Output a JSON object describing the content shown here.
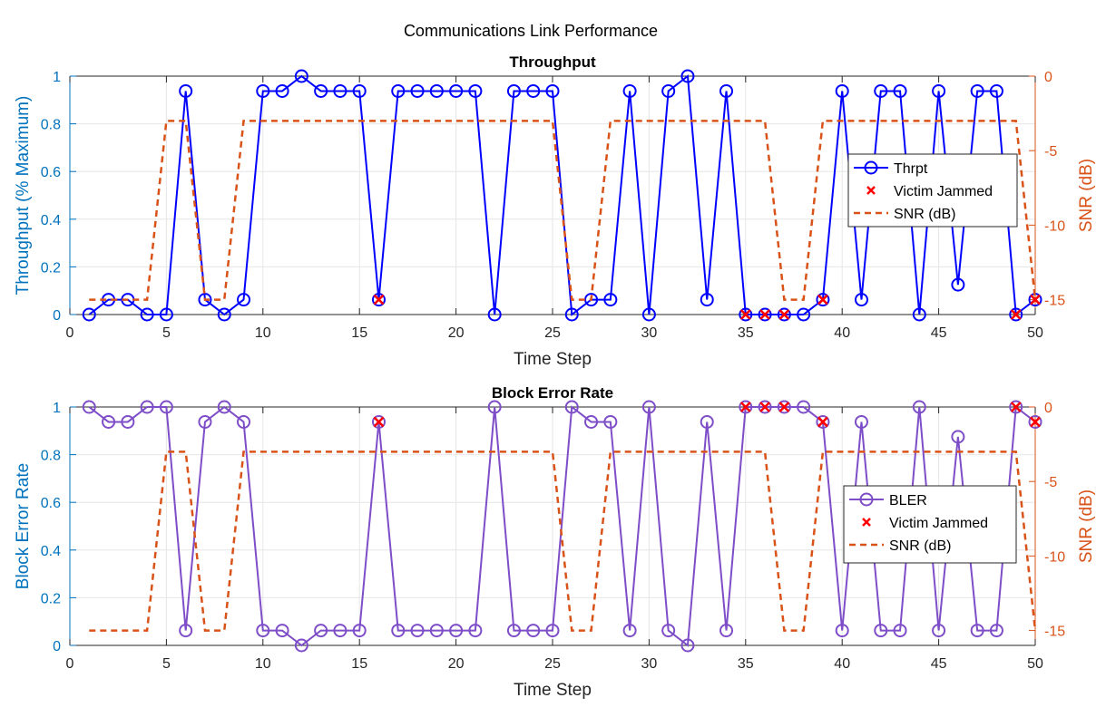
{
  "figure": {
    "title": "Communications Link Performance"
  },
  "colors": {
    "throughput": "#0000FF",
    "bler": "#7E4DC8",
    "jammed": "#FF0000",
    "snr": "#D95319",
    "left_axis": "#0072BD",
    "right_axis": "#D95319",
    "grid": "#E6E6E6"
  },
  "chart_data": [
    {
      "type": "line",
      "title": "Throughput",
      "xlabel": "Time Step",
      "ylabel": "Throughput (% Maximum)",
      "y2label": "SNR (dB)",
      "xlim": [
        0,
        50
      ],
      "ylim": [
        0,
        1
      ],
      "y2lim": [
        -16,
        0
      ],
      "xticks": [
        0,
        5,
        10,
        15,
        20,
        25,
        30,
        35,
        40,
        45,
        50
      ],
      "yticks": [
        0,
        0.2,
        0.4,
        0.6,
        0.8,
        1
      ],
      "y2ticks": [
        -15,
        -10,
        -5,
        0
      ],
      "grid": true,
      "legend_position": "right",
      "x": [
        1,
        2,
        3,
        4,
        5,
        6,
        7,
        8,
        9,
        10,
        11,
        12,
        13,
        14,
        15,
        16,
        17,
        18,
        19,
        20,
        21,
        22,
        23,
        24,
        25,
        26,
        27,
        28,
        29,
        30,
        31,
        32,
        33,
        34,
        35,
        36,
        37,
        38,
        39,
        40,
        41,
        42,
        43,
        44,
        45,
        46,
        47,
        48,
        49,
        50
      ],
      "series": [
        {
          "name": "Thrpt",
          "axis": "left",
          "style": "line-circle",
          "values": [
            0,
            0.0625,
            0.0625,
            0,
            0,
            0.9375,
            0.0625,
            0,
            0.0625,
            0.9375,
            0.9375,
            1,
            0.9375,
            0.9375,
            0.9375,
            0.0625,
            0.9375,
            0.9375,
            0.9375,
            0.9375,
            0.9375,
            0,
            0.9375,
            0.9375,
            0.9375,
            0,
            0.0625,
            0.0625,
            0.9375,
            0,
            0.9375,
            1,
            0.0625,
            0.9375,
            0,
            0,
            0,
            0,
            0.0625,
            0.9375,
            0.0625,
            0.9375,
            0.9375,
            0,
            0.9375,
            0.125,
            0.9375,
            0.9375,
            0,
            0.0625
          ]
        },
        {
          "name": "Victim Jammed",
          "axis": "left",
          "style": "x-marker",
          "points": [
            [
              16,
              0.0625
            ],
            [
              35,
              0
            ],
            [
              36,
              0
            ],
            [
              37,
              0
            ],
            [
              39,
              0.0625
            ],
            [
              49,
              0
            ],
            [
              50,
              0.0625
            ]
          ]
        },
        {
          "name": "SNR (dB)",
          "axis": "right",
          "style": "dashed",
          "values": [
            -15,
            -15,
            -15,
            -15,
            -3,
            -3,
            -15,
            -15,
            -3,
            -3,
            -3,
            -3,
            -3,
            -3,
            -3,
            -3,
            -3,
            -3,
            -3,
            -3,
            -3,
            -3,
            -3,
            -3,
            -3,
            -15,
            -15,
            -3,
            -3,
            -3,
            -3,
            -3,
            -3,
            -3,
            -3,
            -3,
            -15,
            -15,
            -3,
            -3,
            -3,
            -3,
            -3,
            -3,
            -3,
            -3,
            -3,
            -3,
            -3,
            -15
          ]
        }
      ]
    },
    {
      "type": "line",
      "title": "Block Error Rate",
      "xlabel": "Time Step",
      "ylabel": "Block Error Rate",
      "y2label": "SNR (dB)",
      "xlim": [
        0,
        50
      ],
      "ylim": [
        0,
        1
      ],
      "y2lim": [
        -16,
        0
      ],
      "xticks": [
        0,
        5,
        10,
        15,
        20,
        25,
        30,
        35,
        40,
        45,
        50
      ],
      "yticks": [
        0,
        0.2,
        0.4,
        0.6,
        0.8,
        1
      ],
      "y2ticks": [
        -15,
        -10,
        -5,
        0
      ],
      "grid": true,
      "legend_position": "right",
      "x": [
        1,
        2,
        3,
        4,
        5,
        6,
        7,
        8,
        9,
        10,
        11,
        12,
        13,
        14,
        15,
        16,
        17,
        18,
        19,
        20,
        21,
        22,
        23,
        24,
        25,
        26,
        27,
        28,
        29,
        30,
        31,
        32,
        33,
        34,
        35,
        36,
        37,
        38,
        39,
        40,
        41,
        42,
        43,
        44,
        45,
        46,
        47,
        48,
        49,
        50
      ],
      "series": [
        {
          "name": "BLER",
          "axis": "left",
          "style": "line-circle",
          "values": [
            1,
            0.9375,
            0.9375,
            1,
            1,
            0.0625,
            0.9375,
            1,
            0.9375,
            0.0625,
            0.0625,
            0,
            0.0625,
            0.0625,
            0.0625,
            0.9375,
            0.0625,
            0.0625,
            0.0625,
            0.0625,
            0.0625,
            1,
            0.0625,
            0.0625,
            0.0625,
            1,
            0.9375,
            0.9375,
            0.0625,
            1,
            0.0625,
            0,
            0.9375,
            0.0625,
            1,
            1,
            1,
            1,
            0.9375,
            0.0625,
            0.9375,
            0.0625,
            0.0625,
            1,
            0.0625,
            0.875,
            0.0625,
            0.0625,
            1,
            0.9375
          ]
        },
        {
          "name": "Victim Jammed",
          "axis": "left",
          "style": "x-marker",
          "points": [
            [
              16,
              0.9375
            ],
            [
              35,
              1
            ],
            [
              36,
              1
            ],
            [
              37,
              1
            ],
            [
              39,
              0.9375
            ],
            [
              49,
              1
            ],
            [
              50,
              0.9375
            ]
          ]
        },
        {
          "name": "SNR (dB)",
          "axis": "right",
          "style": "dashed",
          "values": [
            -15,
            -15,
            -15,
            -15,
            -3,
            -3,
            -15,
            -15,
            -3,
            -3,
            -3,
            -3,
            -3,
            -3,
            -3,
            -3,
            -3,
            -3,
            -3,
            -3,
            -3,
            -3,
            -3,
            -3,
            -3,
            -15,
            -15,
            -3,
            -3,
            -3,
            -3,
            -3,
            -3,
            -3,
            -3,
            -3,
            -15,
            -15,
            -3,
            -3,
            -3,
            -3,
            -3,
            -3,
            -3,
            -3,
            -3,
            -3,
            -3,
            -15
          ]
        }
      ]
    }
  ]
}
